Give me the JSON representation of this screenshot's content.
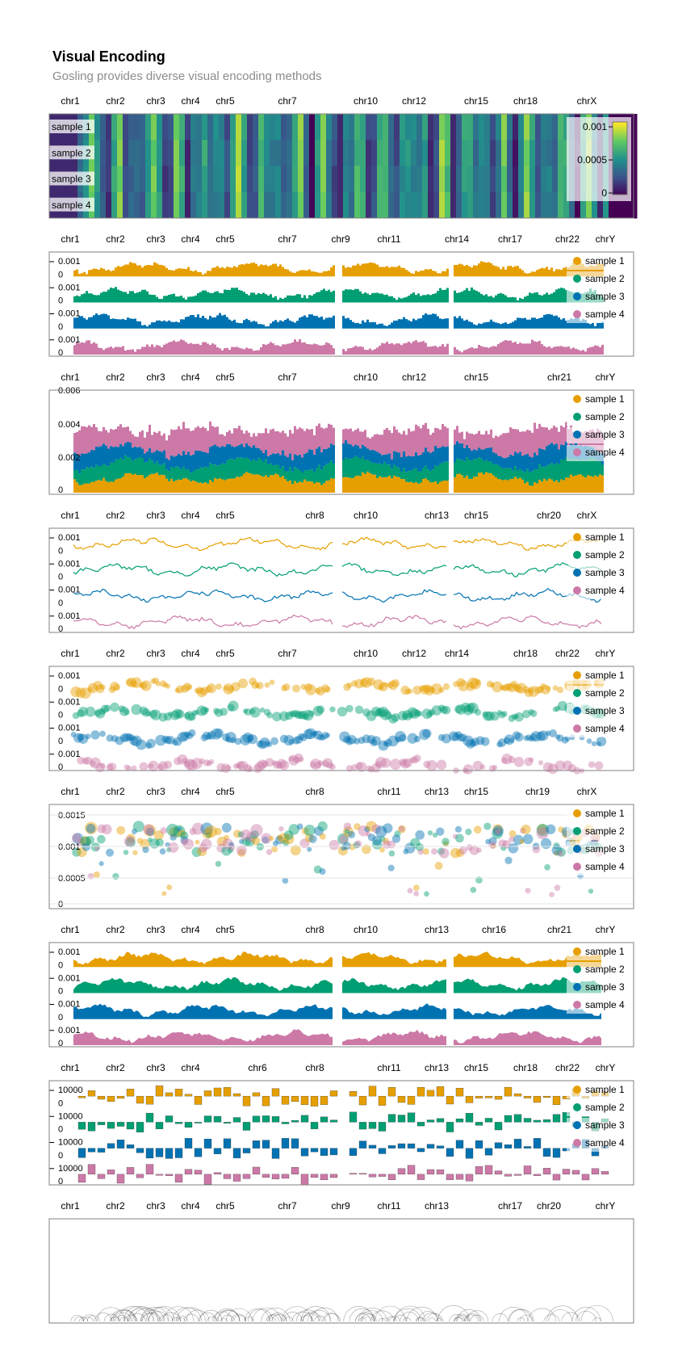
{
  "header": {
    "title": "Visual Encoding",
    "subtitle": "Gosling provides diverse visual encoding methods"
  },
  "colors": {
    "sample 1": "#e69f00",
    "sample 2": "#009e73",
    "sample 3": "#0072b2",
    "sample 4": "#cc79a7",
    "frame": "#808080",
    "arc": "#000000"
  },
  "chart_data": [
    {
      "type": "heatmap",
      "x_labels": [
        "chr1",
        "chr2",
        "chr3",
        "chr4",
        "chr5",
        "chr7",
        "chr10",
        "chr12",
        "chr15",
        "chr18",
        "chrX"
      ],
      "rows": [
        "sample 1",
        "sample 2",
        "sample 3",
        "sample 4"
      ],
      "colormap": "viridis",
      "legend_ticks": [
        "0.001",
        "0.0005",
        "0"
      ],
      "value_range": [
        0,
        0.0012
      ]
    },
    {
      "type": "bar",
      "x_labels": [
        "chr1",
        "chr2",
        "chr3",
        "chr4",
        "chr5",
        "chr7",
        "chr9",
        "chr11",
        "chr14",
        "chr17",
        "chr22",
        "chrY"
      ],
      "rows": [
        "sample 1",
        "sample 2",
        "sample 3",
        "sample 4"
      ],
      "row_ticks": [
        "0.001",
        "0"
      ],
      "legend": [
        "sample 1",
        "sample 2",
        "sample 3",
        "sample 4"
      ]
    },
    {
      "type": "bar",
      "stacked": true,
      "x_labels": [
        "chr1",
        "chr2",
        "chr3",
        "chr4",
        "chr5",
        "chr7",
        "chr10",
        "chr12",
        "chr15",
        "chr21",
        "chrY"
      ],
      "y_ticks": [
        "0.006",
        "0.004",
        "0.002",
        "0"
      ],
      "ylim": [
        0,
        0.006
      ],
      "legend": [
        "sample 1",
        "sample 2",
        "sample 3",
        "sample 4"
      ]
    },
    {
      "type": "line",
      "x_labels": [
        "chr1",
        "chr2",
        "chr3",
        "chr4",
        "chr5",
        "chr8",
        "chr10",
        "chr13",
        "chr15",
        "chr20",
        "chrX"
      ],
      "rows": [
        "sample 1",
        "sample 2",
        "sample 3",
        "sample 4"
      ],
      "row_ticks": [
        "0.001",
        "0"
      ],
      "legend": [
        "sample 1",
        "sample 2",
        "sample 3",
        "sample 4"
      ]
    },
    {
      "type": "scatter",
      "x_labels": [
        "chr1",
        "chr2",
        "chr3",
        "chr4",
        "chr5",
        "chr7",
        "chr10",
        "chr12",
        "chr14",
        "chr18",
        "chr22",
        "chrY"
      ],
      "rows": [
        "sample 1",
        "sample 2",
        "sample 3",
        "sample 4"
      ],
      "row_ticks": [
        "0.001",
        "0"
      ],
      "legend": [
        "sample 1",
        "sample 2",
        "sample 3",
        "sample 4"
      ]
    },
    {
      "type": "scatter",
      "overlaid": true,
      "x_labels": [
        "chr1",
        "chr2",
        "chr3",
        "chr4",
        "chr5",
        "chr8",
        "chr11",
        "chr13",
        "chr15",
        "chr19",
        "chrX"
      ],
      "y_ticks": [
        "0.0015",
        "0.001",
        "0.0005",
        "0"
      ],
      "ylim": [
        0,
        0.0016
      ],
      "legend": [
        "sample 1",
        "sample 2",
        "sample 3",
        "sample 4"
      ]
    },
    {
      "type": "area",
      "x_labels": [
        "chr1",
        "chr2",
        "chr3",
        "chr4",
        "chr5",
        "chr8",
        "chr10",
        "chr13",
        "chr16",
        "chr21",
        "chrY"
      ],
      "rows": [
        "sample 1",
        "sample 2",
        "sample 3",
        "sample 4"
      ],
      "row_ticks": [
        "0.001",
        "0"
      ],
      "legend": [
        "sample 1",
        "sample 2",
        "sample 3",
        "sample 4"
      ]
    },
    {
      "type": "bar",
      "centered": true,
      "x_labels": [
        "chr1",
        "chr2",
        "chr3",
        "chr4",
        "chr6",
        "chr8",
        "chr11",
        "chr13",
        "chr15",
        "chr18",
        "chr22",
        "chrY"
      ],
      "rows": [
        "sample 1",
        "sample 2",
        "sample 3",
        "sample 4"
      ],
      "row_ticks": [
        "10000",
        "0"
      ],
      "legend": [
        "sample 1",
        "sample 2",
        "sample 3",
        "sample 4"
      ]
    },
    {
      "type": "arc",
      "x_labels": [
        "chr1",
        "chr2",
        "chr3",
        "chr4",
        "chr5",
        "chr7",
        "chr9",
        "chr11",
        "chr13",
        "chr17",
        "chr20",
        "chrY"
      ]
    }
  ]
}
